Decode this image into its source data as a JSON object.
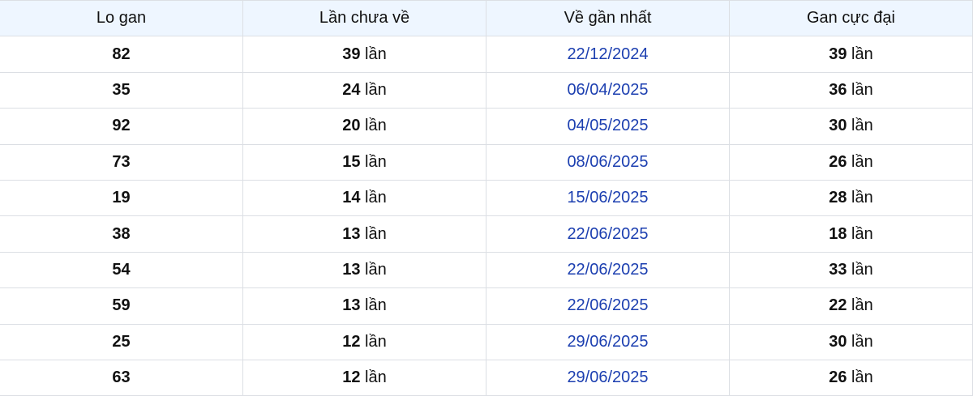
{
  "table": {
    "headers": [
      "Lo gan",
      "Lần chưa về",
      "Về gần nhất",
      "Gan cực đại"
    ],
    "unit": "lần",
    "colors": {
      "header_bg": "#eef6ff",
      "date": "#1c3fb0",
      "border": "#dcdfe4"
    },
    "rows": [
      {
        "lo": "82",
        "missed": "39",
        "last": "22/12/2024",
        "max": "39"
      },
      {
        "lo": "35",
        "missed": "24",
        "last": "06/04/2025",
        "max": "36"
      },
      {
        "lo": "92",
        "missed": "20",
        "last": "04/05/2025",
        "max": "30"
      },
      {
        "lo": "73",
        "missed": "15",
        "last": "08/06/2025",
        "max": "26"
      },
      {
        "lo": "19",
        "missed": "14",
        "last": "15/06/2025",
        "max": "28"
      },
      {
        "lo": "38",
        "missed": "13",
        "last": "22/06/2025",
        "max": "18"
      },
      {
        "lo": "54",
        "missed": "13",
        "last": "22/06/2025",
        "max": "33"
      },
      {
        "lo": "59",
        "missed": "13",
        "last": "22/06/2025",
        "max": "22"
      },
      {
        "lo": "25",
        "missed": "12",
        "last": "29/06/2025",
        "max": "30"
      },
      {
        "lo": "63",
        "missed": "12",
        "last": "29/06/2025",
        "max": "26"
      }
    ]
  }
}
